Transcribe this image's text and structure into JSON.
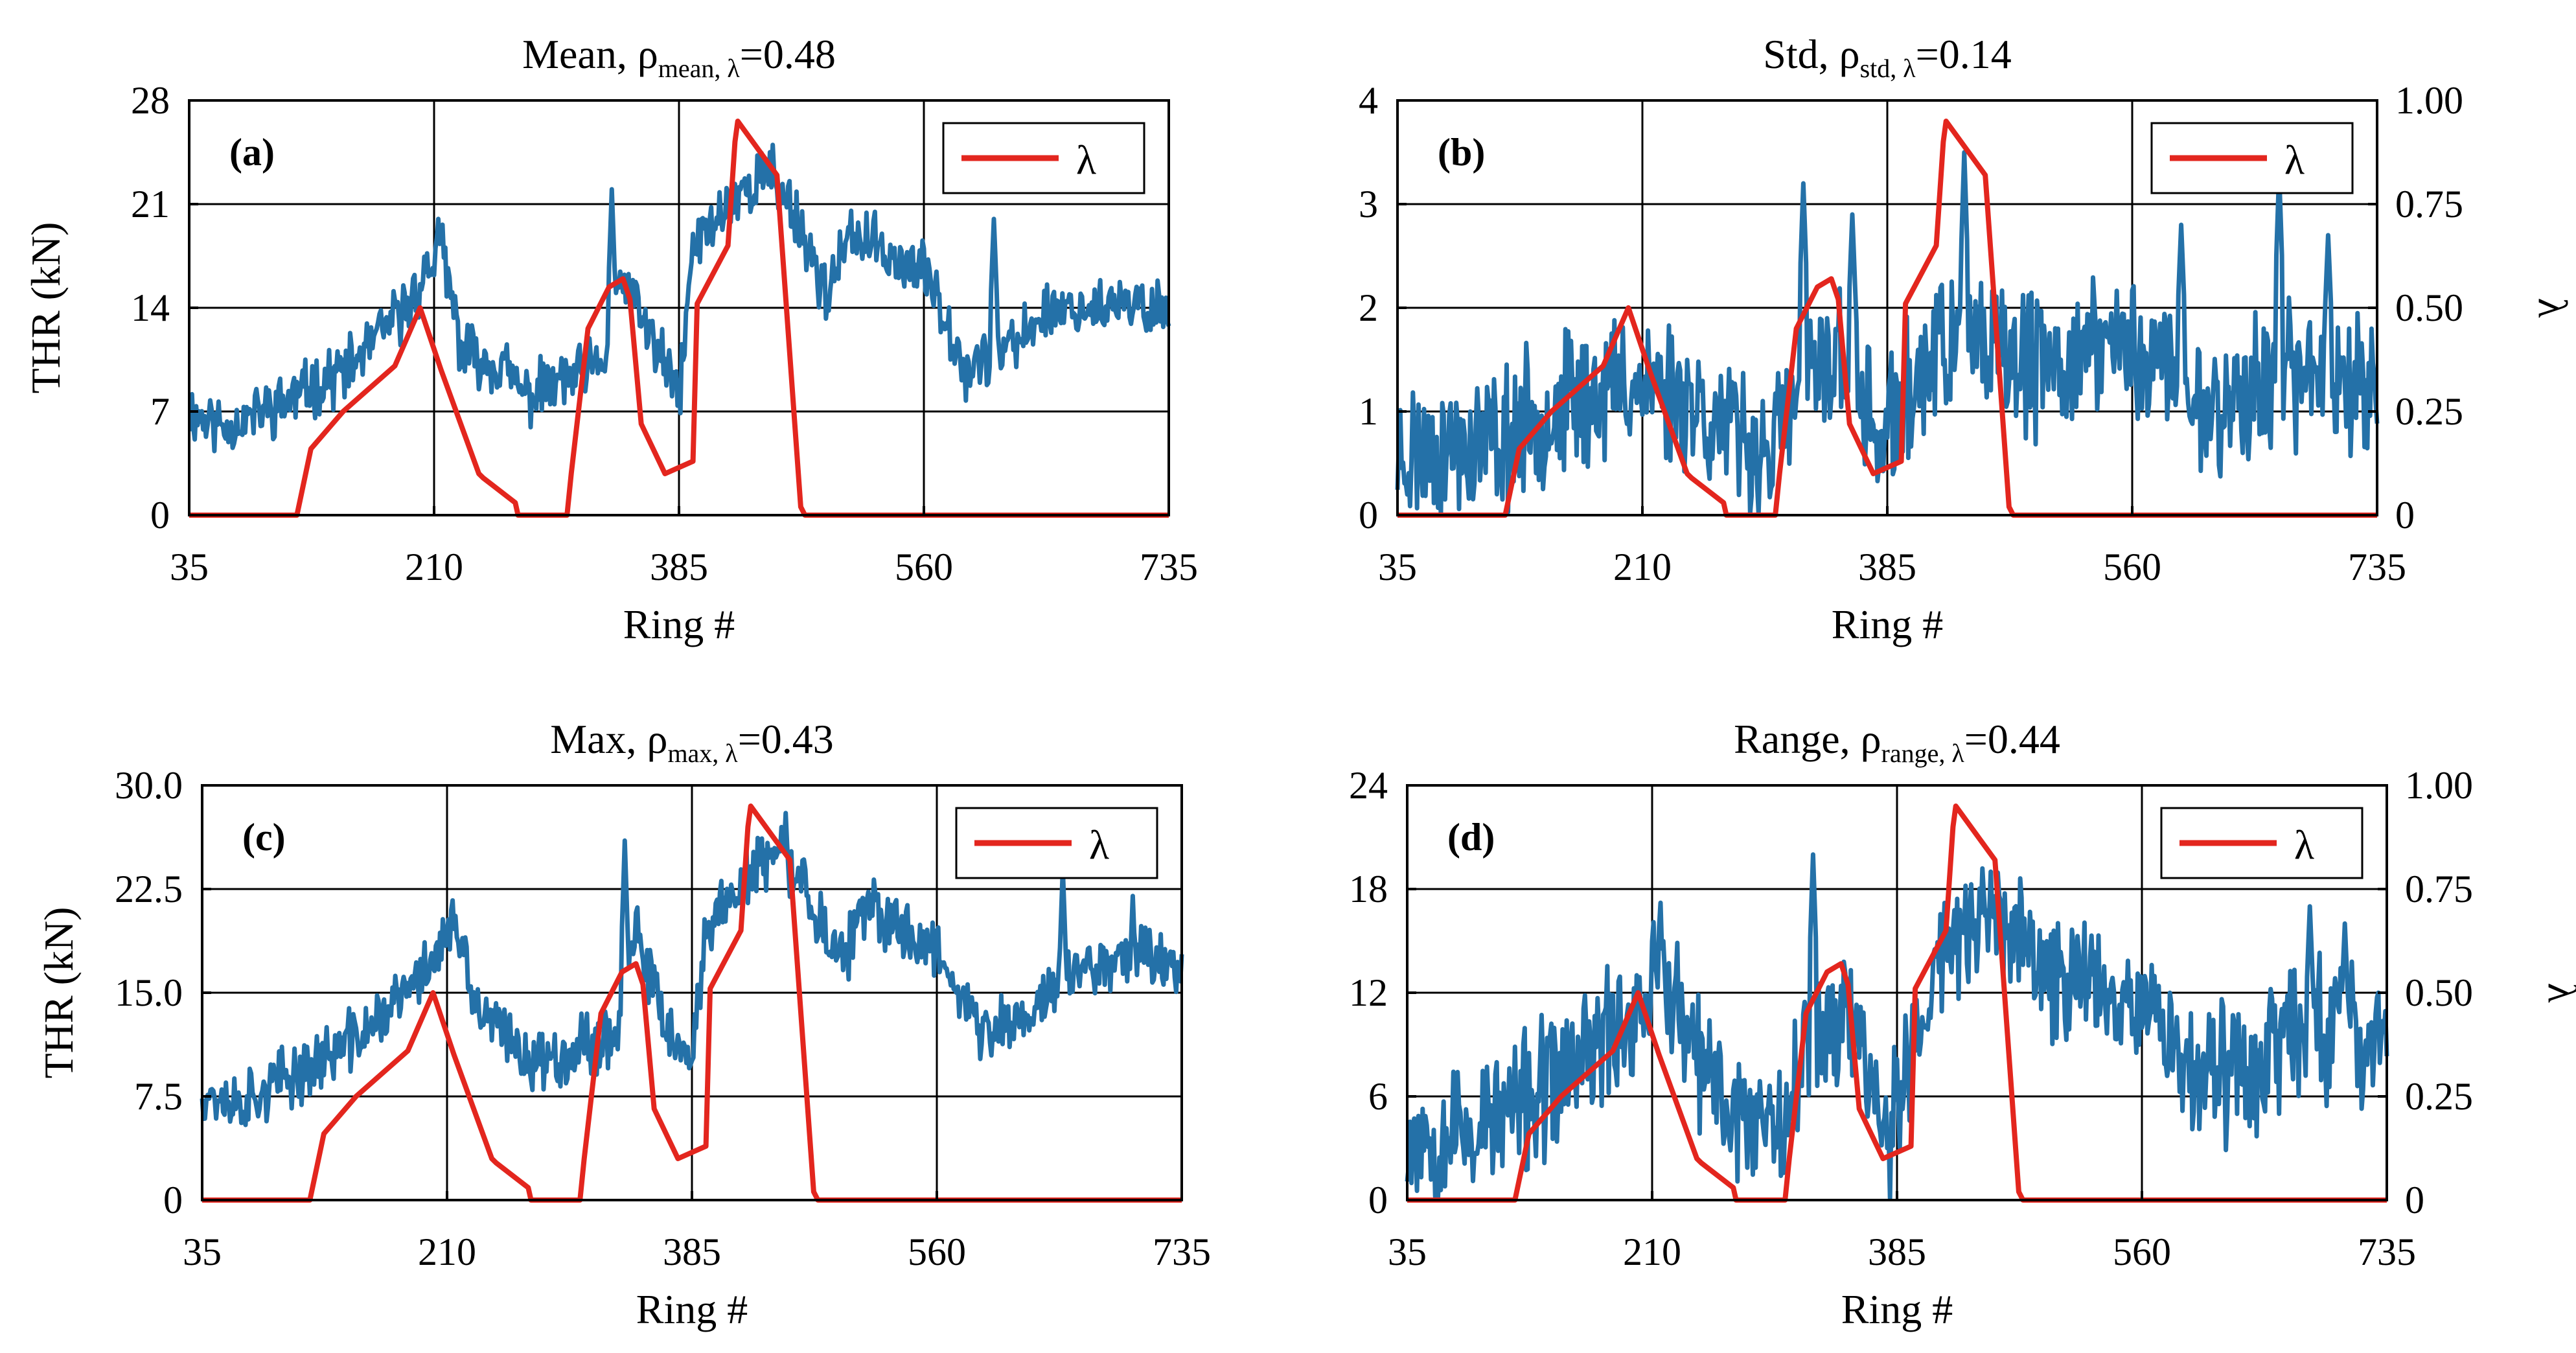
{
  "chart_data": [
    {
      "type": "line",
      "panel_label": "(a)",
      "title": {
        "prefix": "Mean, ρ",
        "sub": "mean, λ",
        "suffix": "=0.48"
      },
      "xlabel": "Ring #",
      "ylabel": "THR (kN)",
      "xlim": [
        35,
        735
      ],
      "xticks": [
        "35",
        "210",
        "385",
        "560",
        "735"
      ],
      "ylim": [
        0,
        28
      ],
      "yticks": [
        "0",
        "7",
        "14",
        "21",
        "28"
      ],
      "legend": "top-right",
      "legend_label": "λ",
      "color_thr": "#2471a8",
      "color_lambda": "#e3261e",
      "thr_shape": {
        "levels": [
          [
            35,
            7
          ],
          [
            60,
            6
          ],
          [
            100,
            7.5
          ],
          [
            150,
            10
          ],
          [
            190,
            14
          ],
          [
            215,
            18
          ],
          [
            230,
            11
          ],
          [
            260,
            10
          ],
          [
            275,
            8
          ],
          [
            300,
            9
          ],
          [
            330,
            10
          ],
          [
            345,
            16
          ],
          [
            365,
            12
          ],
          [
            385,
            8
          ],
          [
            395,
            18
          ],
          [
            420,
            21
          ],
          [
            445,
            23
          ],
          [
            465,
            21
          ],
          [
            490,
            15
          ],
          [
            510,
            19
          ],
          [
            530,
            18
          ],
          [
            545,
            17
          ],
          [
            565,
            16
          ],
          [
            590,
            10
          ],
          [
            620,
            11
          ],
          [
            650,
            14
          ],
          [
            700,
            14
          ],
          [
            735,
            14
          ]
        ],
        "spikes": [
          [
            337,
            22
          ],
          [
            213,
            20
          ],
          [
            452,
            25
          ],
          [
            610,
            20
          ]
        ],
        "noise": 3.2,
        "seed": 11
      },
      "lambda": {
        "ring": [
          35,
          112,
          122,
          145,
          182,
          200,
          215,
          242,
          245,
          268,
          270,
          275,
          280,
          305,
          308,
          320,
          335,
          345,
          350,
          358,
          375,
          395,
          398,
          420,
          425,
          427,
          455,
          472,
          475,
          735
        ],
        "value": [
          0,
          0,
          0.16,
          0.25,
          0.36,
          0.5,
          0.35,
          0.1,
          0.09,
          0.03,
          0.0,
          0.0,
          0.0,
          0.0,
          0.1,
          0.45,
          0.55,
          0.57,
          0.52,
          0.22,
          0.1,
          0.13,
          0.51,
          0.65,
          0.9,
          0.95,
          0.82,
          0.02,
          0,
          0
        ]
      }
    },
    {
      "type": "line",
      "panel_label": "(b)",
      "title": {
        "prefix": "Std, ρ",
        "sub": "std, λ",
        "suffix": "=0.14"
      },
      "xlabel": "Ring #",
      "ylabel": "",
      "y2label": "λ",
      "xlim": [
        35,
        735
      ],
      "xticks": [
        "35",
        "210",
        "385",
        "560",
        "735"
      ],
      "ylim": [
        0,
        4
      ],
      "yticks": [
        "0",
        "1",
        "2",
        "3",
        "4"
      ],
      "y2lim": [
        0,
        1
      ],
      "y2ticks": [
        "0",
        "0.25",
        "0.50",
        "0.75",
        "1.00"
      ],
      "legend": "top-right",
      "legend_label": "λ",
      "color_thr": "#2471a8",
      "color_lambda": "#e3261e",
      "thr_shape": {
        "levels": [
          [
            35,
            0.6
          ],
          [
            100,
            0.7
          ],
          [
            160,
            1.1
          ],
          [
            200,
            1.3
          ],
          [
            240,
            1.2
          ],
          [
            270,
            0.8
          ],
          [
            300,
            0.6
          ],
          [
            330,
            1.3
          ],
          [
            350,
            1.6
          ],
          [
            380,
            0.7
          ],
          [
            420,
            1.6
          ],
          [
            460,
            1.5
          ],
          [
            500,
            1.4
          ],
          [
            540,
            1.7
          ],
          [
            580,
            1.5
          ],
          [
            620,
            1.0
          ],
          [
            660,
            1.3
          ],
          [
            700,
            1.4
          ],
          [
            735,
            1.3
          ]
        ],
        "spikes": [
          [
            325,
            3.2
          ],
          [
            440,
            3.5
          ],
          [
            665,
            3.3
          ],
          [
            360,
            2.9
          ],
          [
            700,
            2.7
          ],
          [
            595,
            2.8
          ]
        ],
        "noise": 1.1,
        "seed": 23
      },
      "lambda": {
        "ring": [
          35,
          112,
          122,
          145,
          182,
          200,
          215,
          242,
          245,
          268,
          270,
          275,
          280,
          305,
          308,
          320,
          335,
          345,
          350,
          358,
          375,
          395,
          398,
          420,
          425,
          427,
          455,
          472,
          475,
          735
        ],
        "value": [
          0,
          0,
          0.16,
          0.25,
          0.36,
          0.5,
          0.35,
          0.1,
          0.09,
          0.03,
          0.0,
          0.0,
          0.0,
          0.0,
          0.1,
          0.45,
          0.55,
          0.57,
          0.52,
          0.22,
          0.1,
          0.13,
          0.51,
          0.65,
          0.9,
          0.95,
          0.82,
          0.02,
          0,
          0
        ]
      }
    },
    {
      "type": "line",
      "panel_label": "(c)",
      "title": {
        "prefix": "Max, ρ",
        "sub": "max, λ",
        "suffix": "=0.43"
      },
      "xlabel": "Ring #",
      "ylabel": "THR (kN)",
      "xlim": [
        35,
        735
      ],
      "xticks": [
        "35",
        "210",
        "385",
        "560",
        "735"
      ],
      "ylim": [
        0,
        30
      ],
      "yticks": [
        "0",
        "7.5",
        "15.0",
        "22.5",
        "30.0"
      ],
      "legend": "top-right",
      "legend_label": "λ",
      "color_thr": "#2471a8",
      "color_lambda": "#e3261e",
      "thr_shape": {
        "levels": [
          [
            35,
            8
          ],
          [
            60,
            7
          ],
          [
            100,
            9
          ],
          [
            150,
            12
          ],
          [
            190,
            16
          ],
          [
            215,
            20
          ],
          [
            230,
            14
          ],
          [
            260,
            11
          ],
          [
            275,
            10
          ],
          [
            300,
            11
          ],
          [
            330,
            12
          ],
          [
            345,
            19
          ],
          [
            365,
            13
          ],
          [
            385,
            9
          ],
          [
            395,
            20
          ],
          [
            420,
            23
          ],
          [
            445,
            25
          ],
          [
            465,
            23
          ],
          [
            490,
            17
          ],
          [
            510,
            21
          ],
          [
            530,
            20
          ],
          [
            545,
            19
          ],
          [
            565,
            18
          ],
          [
            590,
            12
          ],
          [
            620,
            13
          ],
          [
            650,
            16
          ],
          [
            700,
            18
          ],
          [
            735,
            17
          ]
        ],
        "spikes": [
          [
            337,
            26
          ],
          [
            452,
            28
          ],
          [
            650,
            24
          ],
          [
            700,
            22
          ]
        ],
        "noise": 3.6,
        "seed": 37
      },
      "lambda": {
        "ring": [
          35,
          112,
          122,
          145,
          182,
          200,
          215,
          242,
          245,
          268,
          270,
          275,
          280,
          305,
          308,
          320,
          335,
          345,
          350,
          358,
          375,
          395,
          398,
          420,
          425,
          427,
          455,
          472,
          475,
          735
        ],
        "value": [
          0,
          0,
          0.16,
          0.25,
          0.36,
          0.5,
          0.35,
          0.1,
          0.09,
          0.03,
          0.0,
          0.0,
          0.0,
          0.0,
          0.1,
          0.45,
          0.55,
          0.57,
          0.52,
          0.22,
          0.1,
          0.13,
          0.51,
          0.65,
          0.9,
          0.95,
          0.82,
          0.02,
          0,
          0
        ]
      }
    },
    {
      "type": "line",
      "panel_label": "(d)",
      "title": {
        "prefix": "Range, ρ",
        "sub": "range, λ",
        "suffix": "=0.44"
      },
      "xlabel": "Ring #",
      "ylabel": "",
      "y2label": "λ",
      "xlim": [
        35,
        735
      ],
      "xticks": [
        "35",
        "210",
        "385",
        "560",
        "735"
      ],
      "ylim": [
        0,
        24
      ],
      "yticks": [
        "0",
        "6",
        "12",
        "18",
        "24"
      ],
      "y2lim": [
        0,
        1
      ],
      "y2ticks": [
        "0",
        "0.25",
        "0.50",
        "0.75",
        "1.00"
      ],
      "legend": "top-right",
      "legend_label": "λ",
      "color_thr": "#2471a8",
      "color_lambda": "#e3261e",
      "thr_shape": {
        "levels": [
          [
            35,
            4
          ],
          [
            80,
            4
          ],
          [
            130,
            6
          ],
          [
            170,
            9
          ],
          [
            200,
            11
          ],
          [
            215,
            14
          ],
          [
            240,
            8
          ],
          [
            270,
            5
          ],
          [
            300,
            5
          ],
          [
            330,
            10
          ],
          [
            350,
            11
          ],
          [
            380,
            4
          ],
          [
            420,
            15
          ],
          [
            460,
            16
          ],
          [
            490,
            13
          ],
          [
            520,
            13
          ],
          [
            560,
            12
          ],
          [
            600,
            7
          ],
          [
            640,
            8
          ],
          [
            680,
            10
          ],
          [
            735,
            9
          ]
        ],
        "spikes": [
          [
            325,
            20
          ],
          [
            452,
            19
          ],
          [
            680,
            17
          ],
          [
            705,
            16
          ]
        ],
        "noise": 6.5,
        "seed": 53
      },
      "lambda": {
        "ring": [
          35,
          112,
          122,
          145,
          182,
          200,
          215,
          242,
          245,
          268,
          270,
          275,
          280,
          305,
          308,
          320,
          335,
          345,
          350,
          358,
          375,
          395,
          398,
          420,
          425,
          427,
          455,
          472,
          475,
          735
        ],
        "value": [
          0,
          0,
          0.16,
          0.25,
          0.36,
          0.5,
          0.35,
          0.1,
          0.09,
          0.03,
          0.0,
          0.0,
          0.0,
          0.0,
          0.1,
          0.45,
          0.55,
          0.57,
          0.52,
          0.22,
          0.1,
          0.13,
          0.51,
          0.65,
          0.9,
          0.95,
          0.82,
          0.02,
          0,
          0
        ]
      }
    }
  ]
}
